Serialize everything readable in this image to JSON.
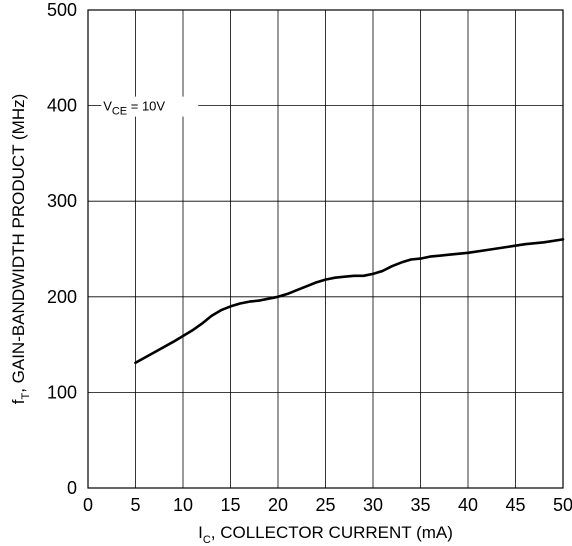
{
  "chart_data": {
    "type": "line",
    "xlabel": {
      "main": "I",
      "sub": "C",
      "rest": ", COLLECTOR CURRENT (mA)"
    },
    "ylabel": {
      "main": "f",
      "sub": "T",
      "rest": ", GAIN-BANDWIDTH PRODUCT (MHz)"
    },
    "xlim": [
      0,
      50
    ],
    "ylim": [
      0,
      500
    ],
    "xticks": [
      0,
      5,
      10,
      15,
      20,
      25,
      30,
      35,
      40,
      45,
      50
    ],
    "yticks": [
      0,
      100,
      200,
      300,
      400,
      500
    ],
    "grid": true,
    "annotation": {
      "main": "V",
      "sub": "CE",
      "rest": " = 10V"
    },
    "series": [
      {
        "x": [
          5,
          7,
          9,
          11,
          12,
          13,
          14,
          15,
          16,
          17,
          18,
          19,
          20,
          21,
          22,
          23,
          24,
          25,
          26,
          27,
          28,
          29,
          30,
          31,
          32,
          33,
          34,
          35,
          36,
          37,
          38,
          40,
          42,
          44,
          46,
          48,
          50
        ],
        "y": [
          131,
          142,
          153,
          165,
          172,
          180,
          186,
          190,
          193,
          195,
          196,
          198,
          200,
          203,
          207,
          211,
          215,
          218,
          220,
          221,
          222,
          222,
          224,
          227,
          232,
          236,
          239,
          240,
          242,
          243,
          244,
          246,
          249,
          252,
          255,
          257,
          260
        ]
      }
    ]
  }
}
